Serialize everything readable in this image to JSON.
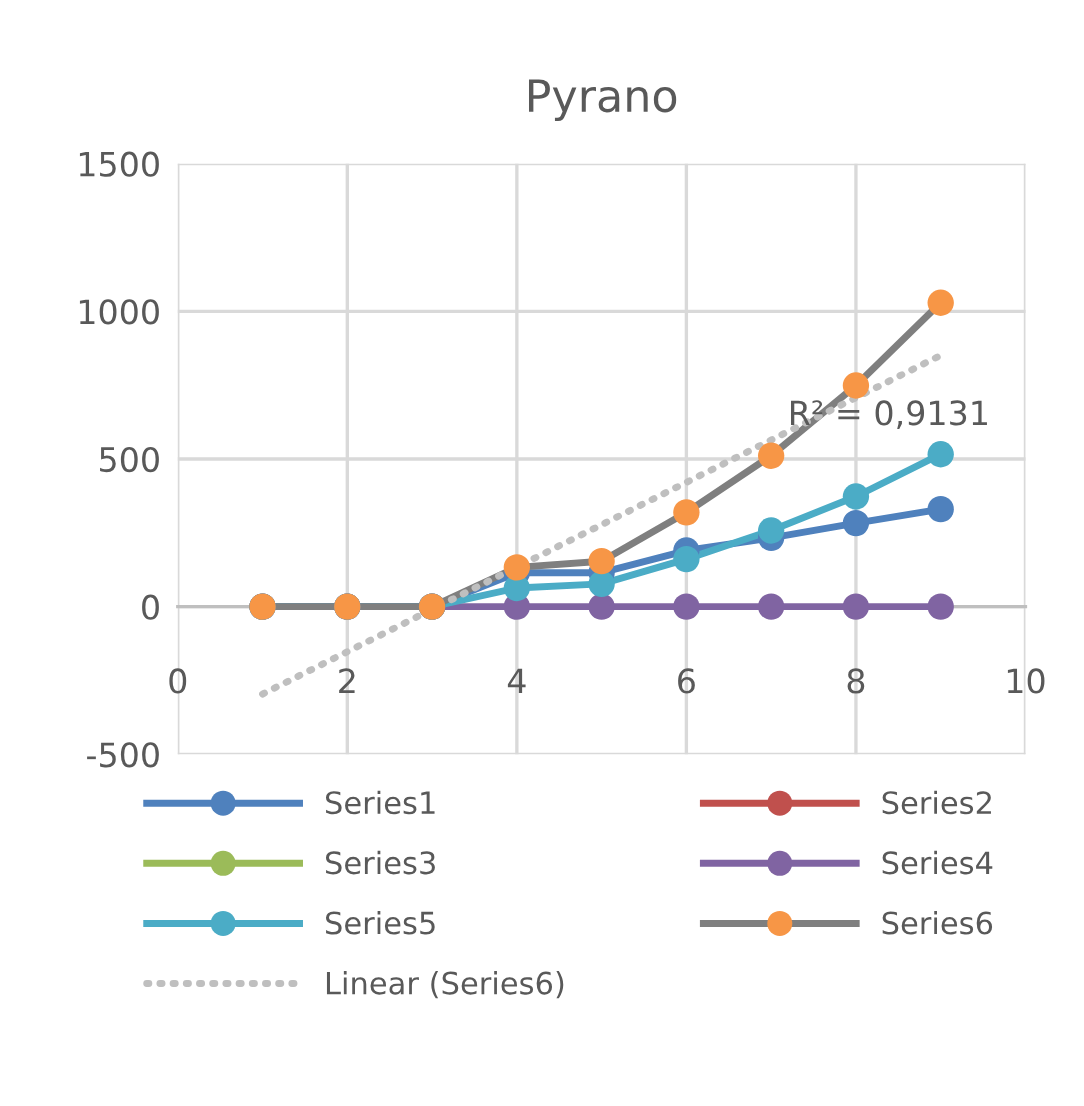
{
  "chart_data": {
    "type": "line",
    "title": "Pyrano",
    "x": [
      1,
      2,
      3,
      4,
      5,
      6,
      7,
      8,
      9
    ],
    "xlim": [
      0,
      10
    ],
    "xticks": [
      0,
      2,
      4,
      6,
      8,
      10
    ],
    "ylim": [
      -500,
      1500
    ],
    "yticks": [
      -500,
      0,
      500,
      1000,
      1500
    ],
    "grid": true,
    "legend": "bottom",
    "marker": "circle",
    "series": [
      {
        "name": "Series1",
        "color": "#4f81bd",
        "values": [
          0,
          0,
          0,
          115,
          115,
          190,
          233,
          283,
          330
        ]
      },
      {
        "name": "Series2",
        "color": "#c0504d",
        "values": [
          null,
          null,
          null,
          null,
          null,
          null,
          null,
          null,
          null
        ]
      },
      {
        "name": "Series3",
        "color": "#9bbb59",
        "values": [
          null,
          null,
          null,
          null,
          null,
          null,
          null,
          null,
          null
        ]
      },
      {
        "name": "Series4",
        "color": "#8064a2",
        "values": [
          0,
          0,
          0,
          0,
          0,
          0,
          0,
          0,
          0
        ]
      },
      {
        "name": "Series5",
        "color": "#4bacc6",
        "values": [
          0,
          0,
          0,
          63,
          77,
          161,
          258,
          373,
          516
        ]
      },
      {
        "name": "Series6",
        "color": "#7f7f7f",
        "colors": [
          "#f79646",
          "#f79646",
          "#f79646",
          "#f79646",
          "#f79646",
          "#f79646",
          "#f79646",
          "#f79646",
          "#f79646"
        ],
        "values": [
          0,
          0,
          0,
          133,
          154,
          319,
          511,
          749,
          1029
        ]
      },
      {
        "name": "Linear (Series6)",
        "color": "#bfbfbf",
        "line_style": "dotted",
        "marker": "none",
        "x": [
          1,
          9
        ],
        "values": [
          -296,
          851
        ]
      }
    ],
    "annotations": [
      "R² = 0,9131"
    ]
  }
}
